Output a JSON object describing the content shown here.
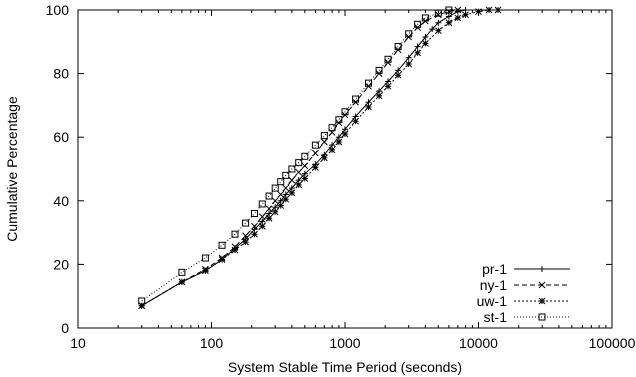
{
  "chart_data": {
    "type": "line",
    "title": "",
    "xlabel": "System Stable Time Period (seconds)",
    "ylabel": "Cumulative Percentage",
    "xscale": "log",
    "xlim": [
      10,
      100000
    ],
    "ylim": [
      0,
      100
    ],
    "xticks": [
      10,
      100,
      1000,
      10000,
      100000
    ],
    "xtick_labels": [
      "10",
      "100",
      "1000",
      "10000",
      "100000"
    ],
    "yticks": [
      0,
      20,
      40,
      60,
      80,
      100
    ],
    "ytick_labels": [
      "0",
      "20",
      "40",
      "60",
      "80",
      "100"
    ],
    "grid": false,
    "legend_position": "bottom-right",
    "series": [
      {
        "name": "pr-1",
        "marker": "plus",
        "dash": "",
        "points": [
          [
            30,
            7
          ],
          [
            60,
            14.5
          ],
          [
            90,
            18
          ],
          [
            120,
            21.5
          ],
          [
            150,
            25
          ],
          [
            180,
            28
          ],
          [
            210,
            31
          ],
          [
            240,
            33.5
          ],
          [
            270,
            36
          ],
          [
            300,
            38
          ],
          [
            330,
            40
          ],
          [
            360,
            42
          ],
          [
            400,
            44
          ],
          [
            450,
            46.5
          ],
          [
            500,
            48.5
          ],
          [
            600,
            51.5
          ],
          [
            700,
            54.5
          ],
          [
            800,
            57.5
          ],
          [
            900,
            60
          ],
          [
            1000,
            62.5
          ],
          [
            1200,
            66.5
          ],
          [
            1500,
            71
          ],
          [
            1800,
            74.5
          ],
          [
            2100,
            77.5
          ],
          [
            2500,
            81
          ],
          [
            3000,
            85
          ],
          [
            3500,
            88.5
          ],
          [
            4000,
            91.5
          ],
          [
            4500,
            94
          ],
          [
            5000,
            96
          ],
          [
            6000,
            98
          ],
          [
            7000,
            99.5
          ],
          [
            8000,
            100
          ]
        ]
      },
      {
        "name": "ny-1",
        "marker": "x",
        "dash": "5,3",
        "points": [
          [
            30,
            7
          ],
          [
            60,
            14.5
          ],
          [
            90,
            18.5
          ],
          [
            120,
            22
          ],
          [
            150,
            25.5
          ],
          [
            180,
            29
          ],
          [
            210,
            32
          ],
          [
            240,
            35
          ],
          [
            270,
            37.5
          ],
          [
            300,
            40
          ],
          [
            330,
            42
          ],
          [
            360,
            44
          ],
          [
            400,
            46.5
          ],
          [
            450,
            49
          ],
          [
            500,
            51
          ],
          [
            600,
            55
          ],
          [
            700,
            58.5
          ],
          [
            800,
            61.5
          ],
          [
            900,
            64.5
          ],
          [
            1000,
            67
          ],
          [
            1200,
            71
          ],
          [
            1500,
            76
          ],
          [
            1800,
            80
          ],
          [
            2100,
            83.5
          ],
          [
            2500,
            87.5
          ],
          [
            3000,
            91.5
          ],
          [
            3500,
            94.5
          ],
          [
            4000,
            96.5
          ],
          [
            5000,
            98.5
          ],
          [
            6000,
            99.5
          ],
          [
            7000,
            100
          ]
        ]
      },
      {
        "name": "uw-1",
        "marker": "star",
        "dash": "2,2",
        "points": [
          [
            30,
            7
          ],
          [
            60,
            14.5
          ],
          [
            90,
            18
          ],
          [
            120,
            21.5
          ],
          [
            150,
            24.5
          ],
          [
            180,
            27
          ],
          [
            210,
            29.5
          ],
          [
            240,
            32
          ],
          [
            270,
            34.5
          ],
          [
            300,
            36.5
          ],
          [
            330,
            38.5
          ],
          [
            360,
            40.5
          ],
          [
            400,
            42.5
          ],
          [
            450,
            45
          ],
          [
            500,
            47
          ],
          [
            600,
            50.5
          ],
          [
            700,
            53.5
          ],
          [
            800,
            56
          ],
          [
            900,
            58.5
          ],
          [
            1000,
            61
          ],
          [
            1200,
            65
          ],
          [
            1500,
            69.5
          ],
          [
            1800,
            73
          ],
          [
            2100,
            76
          ],
          [
            2500,
            79.5
          ],
          [
            3000,
            83
          ],
          [
            3500,
            86.5
          ],
          [
            4000,
            89.5
          ],
          [
            5000,
            93.5
          ],
          [
            6000,
            96
          ],
          [
            7000,
            97.5
          ],
          [
            8000,
            98.5
          ],
          [
            10000,
            99.5
          ],
          [
            12000,
            100
          ],
          [
            14000,
            100
          ]
        ]
      },
      {
        "name": "st-1",
        "marker": "square",
        "dash": "1,2",
        "points": [
          [
            30,
            8.5
          ],
          [
            60,
            17.5
          ],
          [
            90,
            22
          ],
          [
            120,
            26
          ],
          [
            150,
            29.5
          ],
          [
            180,
            33
          ],
          [
            210,
            36
          ],
          [
            240,
            39
          ],
          [
            270,
            41.5
          ],
          [
            300,
            44
          ],
          [
            330,
            46
          ],
          [
            360,
            48
          ],
          [
            400,
            50
          ],
          [
            450,
            52
          ],
          [
            500,
            54
          ],
          [
            600,
            57.5
          ],
          [
            700,
            60.5
          ],
          [
            800,
            63
          ],
          [
            900,
            65.5
          ],
          [
            1000,
            68
          ],
          [
            1200,
            72
          ],
          [
            1500,
            77
          ],
          [
            1800,
            81
          ],
          [
            2100,
            84.5
          ],
          [
            2500,
            88.5
          ],
          [
            3000,
            92.5
          ],
          [
            3500,
            95.5
          ],
          [
            4000,
            97.5
          ],
          [
            5000,
            99
          ],
          [
            6000,
            100
          ]
        ]
      }
    ]
  }
}
